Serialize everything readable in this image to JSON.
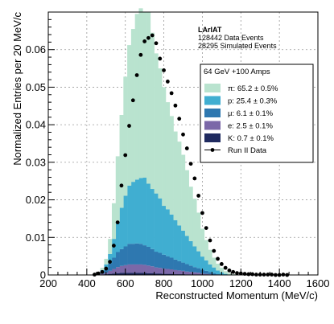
{
  "chart_data": {
    "type": "bar",
    "title": "",
    "xlabel": "Reconstructed Momentum (MeV/c)",
    "ylabel": "Normalized Entries per 20 MeV/c",
    "xlim": [
      200,
      1600
    ],
    "ylim": [
      0,
      0.07
    ],
    "xticks": [
      "200",
      "400",
      "600",
      "800",
      "1000",
      "1200",
      "1400",
      "1600"
    ],
    "yticks": [
      "0",
      "0.01",
      "0.02",
      "0.03",
      "0.04",
      "0.05",
      "0.06"
    ],
    "grid": true,
    "stacked": true,
    "info_box": {
      "title": "LArIAT",
      "line1": "128442 Data Events",
      "line2": "28295 Simulated Events"
    },
    "legend": {
      "placement": "top-right",
      "header": "64 GeV +100 Amps"
    },
    "bin_centers": [
      440,
      460,
      480,
      500,
      520,
      540,
      560,
      580,
      600,
      620,
      640,
      660,
      680,
      700,
      720,
      740,
      760,
      780,
      800,
      820,
      840,
      860,
      880,
      900,
      920,
      940,
      960,
      980,
      1000,
      1020,
      1040,
      1060,
      1080,
      1100,
      1120,
      1140,
      1160,
      1180,
      1200,
      1220,
      1240,
      1260,
      1280,
      1300,
      1320,
      1340,
      1360,
      1380,
      1400,
      1420,
      1440
    ],
    "series": [
      {
        "name": "K: 0.7 ± 0.1%",
        "color": "#1f2a5f",
        "values": [
          0,
          0,
          0.0001,
          0.0002,
          0.0003,
          0.0004,
          0.0005,
          0.0006,
          0.0006,
          0.0006,
          0.0006,
          0.0006,
          0.0006,
          0.0006,
          0.0005,
          0.0005,
          0.0004,
          0.0004,
          0.0003,
          0.0003,
          0.0003,
          0.0002,
          0.0002,
          0.0002,
          0.0001,
          0.0001,
          0.0001,
          0.0001,
          0,
          0,
          0,
          0,
          0,
          0,
          0,
          0,
          0,
          0,
          0,
          0,
          0,
          0,
          0,
          0,
          0,
          0,
          0,
          0,
          0,
          0,
          0
        ]
      },
      {
        "name": "e: 2.5 ± 0.1%",
        "color": "#7b68a8",
        "values": [
          0,
          0,
          0.0002,
          0.0004,
          0.0008,
          0.0012,
          0.0016,
          0.0018,
          0.002,
          0.0022,
          0.0022,
          0.0022,
          0.0022,
          0.0021,
          0.002,
          0.0018,
          0.0016,
          0.0015,
          0.0014,
          0.0013,
          0.0012,
          0.0011,
          0.001,
          0.0009,
          0.0008,
          0.0007,
          0.0006,
          0.0005,
          0.0004,
          0.0003,
          0.0002,
          0.0001,
          0,
          0,
          0,
          0,
          0,
          0,
          0,
          0,
          0,
          0,
          0,
          0,
          0,
          0,
          0,
          0,
          0,
          0,
          0
        ]
      },
      {
        "name": "μ: 6.1 ± 0.1%",
        "color": "#2e78b0",
        "values": [
          0,
          0,
          0.0005,
          0.001,
          0.002,
          0.003,
          0.004,
          0.0045,
          0.005,
          0.0055,
          0.0055,
          0.0056,
          0.0055,
          0.0052,
          0.005,
          0.0046,
          0.0042,
          0.004,
          0.0037,
          0.0034,
          0.0031,
          0.0028,
          0.0025,
          0.0022,
          0.002,
          0.0017,
          0.0014,
          0.0012,
          0.001,
          0.0008,
          0.0006,
          0.0004,
          0.0002,
          0.0001,
          0,
          0,
          0,
          0,
          0,
          0,
          0,
          0,
          0,
          0,
          0,
          0,
          0,
          0,
          0,
          0,
          0
        ]
      },
      {
        "name": "p: 25.4 ± 0.3%",
        "color": "#40aed1",
        "values": [
          0,
          0,
          0.0005,
          0.0012,
          0.0025,
          0.005,
          0.008,
          0.011,
          0.0135,
          0.0155,
          0.0165,
          0.017,
          0.0175,
          0.018,
          0.0168,
          0.016,
          0.0155,
          0.0145,
          0.013,
          0.0125,
          0.0115,
          0.0105,
          0.0095,
          0.0085,
          0.0075,
          0.0065,
          0.0055,
          0.0045,
          0.0035,
          0.0028,
          0.002,
          0.0015,
          0.001,
          0.0006,
          0.0003,
          0.0001,
          0,
          0,
          0,
          0,
          0,
          0,
          0,
          0,
          0,
          0,
          0,
          0,
          0,
          0,
          0
        ]
      },
      {
        "name": "π: 65.2 ± 0.5%",
        "color": "#b9e3cf",
        "values": [
          0,
          0,
          0.0006,
          0.0015,
          0.004,
          0.0095,
          0.0175,
          0.0247,
          0.0317,
          0.0374,
          0.0407,
          0.0441,
          0.0452,
          0.0441,
          0.0457,
          0.0416,
          0.0373,
          0.0346,
          0.0316,
          0.0285,
          0.0262,
          0.0236,
          0.0223,
          0.0202,
          0.0175,
          0.0145,
          0.0127,
          0.0103,
          0.0074,
          0.0054,
          0.0039,
          0.0026,
          0.0018,
          0.0012,
          0.0007,
          0.0004,
          0.0002,
          0.0001,
          0.0001,
          0,
          0,
          0,
          0,
          0,
          0,
          0,
          0,
          0,
          0,
          0,
          0
        ]
      }
    ],
    "data_points": {
      "name": "Run II Data",
      "x": [
        440,
        460,
        480,
        500,
        520,
        540,
        560,
        580,
        600,
        620,
        640,
        660,
        680,
        700,
        720,
        740,
        760,
        780,
        800,
        820,
        840,
        860,
        880,
        900,
        920,
        940,
        960,
        980,
        1000,
        1020,
        1040,
        1060,
        1080,
        1100,
        1120,
        1140,
        1160,
        1180,
        1200,
        1220,
        1240,
        1260,
        1280,
        1300,
        1320,
        1340,
        1360,
        1380,
        1400,
        1420,
        1440
      ],
      "y": [
        0.0001,
        0.0004,
        0.0008,
        0.0017,
        0.0035,
        0.0078,
        0.014,
        0.0238,
        0.0319,
        0.0397,
        0.0465,
        0.0532,
        0.0586,
        0.0622,
        0.0631,
        0.0638,
        0.0617,
        0.0576,
        0.0545,
        0.0515,
        0.0484,
        0.0451,
        0.0416,
        0.0374,
        0.0337,
        0.0296,
        0.0257,
        0.0211,
        0.0165,
        0.0125,
        0.0092,
        0.0064,
        0.0043,
        0.0029,
        0.0019,
        0.0012,
        0.0008,
        0.0005,
        0.0004,
        0.0003,
        0.0002,
        0.0002,
        0.0001,
        0.0001,
        0.0001,
        0.0001,
        0.0001,
        0,
        0,
        0.0001,
        0
      ]
    }
  }
}
